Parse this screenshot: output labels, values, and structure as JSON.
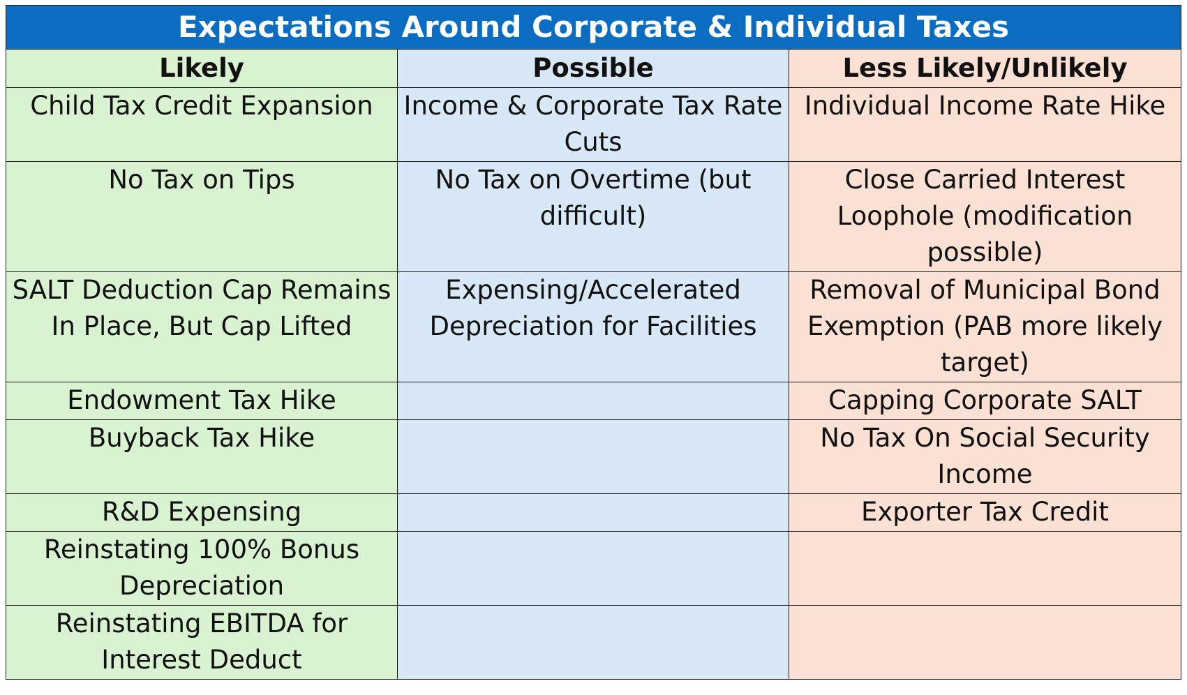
{
  "title": "Expectations Around Corporate & Individual Taxes",
  "columns": {
    "likely": "Likely",
    "possible": "Possible",
    "unlikely": "Less Likely/Unlikely"
  },
  "rows": [
    {
      "likely": "Child Tax Credit Expansion",
      "possible": "Income & Corporate Tax Rate Cuts",
      "unlikely": "Individual Income Rate Hike"
    },
    {
      "likely": "No Tax on Tips",
      "possible": "No Tax on Overtime (but difficult)",
      "unlikely": "Close Carried Interest Loophole (modification possible)"
    },
    {
      "likely": "SALT Deduction Cap Remains In Place, But Cap Lifted",
      "possible": "Expensing/Accelerated Depreciation for Facilities",
      "unlikely": "Removal of Municipal Bond Exemption (PAB more likely target)"
    },
    {
      "likely": "Endowment Tax Hike",
      "possible": "",
      "unlikely": "Capping Corporate SALT"
    },
    {
      "likely": "Buyback Tax Hike",
      "possible": "",
      "unlikely": "No Tax On Social Security Income"
    },
    {
      "likely": "R&D Expensing",
      "possible": "",
      "unlikely": "Exporter Tax Credit"
    },
    {
      "likely": "Reinstating 100% Bonus Depreciation",
      "possible": "",
      "unlikely": ""
    },
    {
      "likely": "Reinstating EBITDA for Interest Deduct",
      "possible": "",
      "unlikely": ""
    }
  ],
  "colors": {
    "title_bg": "#0a6dc2",
    "likely_bg": "#d9f2d1",
    "possible_bg": "#d9e8f7",
    "unlikely_bg": "#fbe0d4"
  }
}
